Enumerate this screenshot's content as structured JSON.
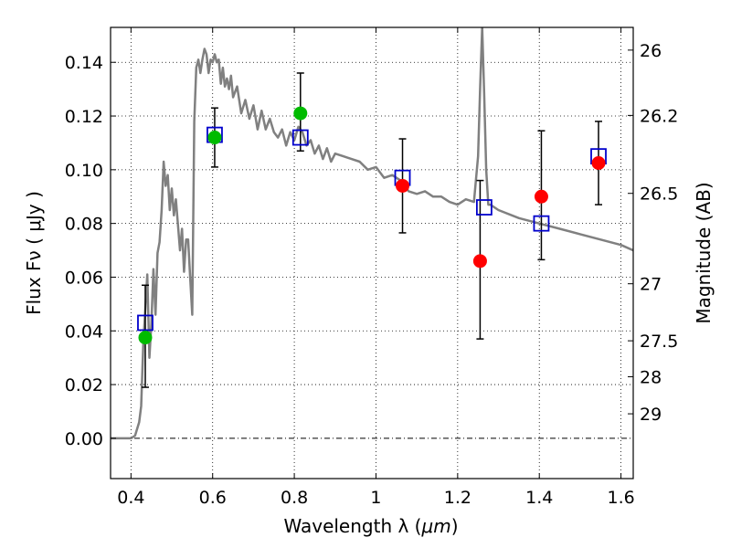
{
  "chart_data": {
    "type": "scatter",
    "title": "",
    "xlabel_prefix": "Wavelength  λ (",
    "xlabel_unit": "μm",
    "xlabel_suffix": ")",
    "ylabel": "Flux  Fν  ( μJy )",
    "ylabel_right": "Magnitude (AB)",
    "xlim": [
      0.35,
      1.63
    ],
    "ylim": [
      -0.015,
      0.153
    ],
    "grid": true,
    "x_ticks": [
      {
        "value": 0.4,
        "label": "0.4"
      },
      {
        "value": 0.6,
        "label": "0.6"
      },
      {
        "value": 0.8,
        "label": "0.8"
      },
      {
        "value": 1.0,
        "label": "1"
      },
      {
        "value": 1.2,
        "label": "1.2"
      },
      {
        "value": 1.4,
        "label": "1.4"
      },
      {
        "value": 1.6,
        "label": "1.6"
      }
    ],
    "y_ticks": [
      {
        "value": 0.0,
        "label": "0.00"
      },
      {
        "value": 0.02,
        "label": "0.02"
      },
      {
        "value": 0.04,
        "label": "0.04"
      },
      {
        "value": 0.06,
        "label": "0.06"
      },
      {
        "value": 0.08,
        "label": "0.08"
      },
      {
        "value": 0.1,
        "label": "0.10"
      },
      {
        "value": 0.12,
        "label": "0.12"
      },
      {
        "value": 0.14,
        "label": "0.14"
      }
    ],
    "right_ticks": [
      {
        "value": 26,
        "label": "26"
      },
      {
        "value": 26.2,
        "label": "26.2"
      },
      {
        "value": 26.5,
        "label": "26.5"
      },
      {
        "value": 27,
        "label": "27"
      },
      {
        "value": 27.5,
        "label": "27.5"
      },
      {
        "value": 28,
        "label": "28"
      },
      {
        "value": 29,
        "label": "29"
      }
    ],
    "series": [
      {
        "kind": "line",
        "color": "#808080",
        "x": [
          0.35,
          0.4,
          0.41,
          0.42,
          0.425,
          0.43,
          0.44,
          0.445,
          0.45,
          0.455,
          0.46,
          0.465,
          0.47,
          0.475,
          0.48,
          0.485,
          0.49,
          0.495,
          0.5,
          0.505,
          0.51,
          0.52,
          0.525,
          0.53,
          0.535,
          0.54,
          0.545,
          0.55,
          0.555,
          0.56,
          0.565,
          0.57,
          0.575,
          0.58,
          0.585,
          0.59,
          0.595,
          0.6,
          0.605,
          0.61,
          0.615,
          0.62,
          0.625,
          0.63,
          0.635,
          0.64,
          0.645,
          0.65,
          0.66,
          0.67,
          0.68,
          0.69,
          0.7,
          0.71,
          0.72,
          0.73,
          0.74,
          0.75,
          0.76,
          0.77,
          0.78,
          0.79,
          0.8,
          0.81,
          0.82,
          0.83,
          0.84,
          0.85,
          0.86,
          0.87,
          0.88,
          0.89,
          0.9,
          0.92,
          0.94,
          0.96,
          0.98,
          1.0,
          1.02,
          1.04,
          1.06,
          1.08,
          1.1,
          1.12,
          1.14,
          1.16,
          1.18,
          1.2,
          1.22,
          1.24,
          1.25,
          1.255,
          1.26,
          1.265,
          1.27,
          1.275,
          1.28,
          1.3,
          1.35,
          1.4,
          1.45,
          1.5,
          1.55,
          1.6,
          1.63
        ],
        "y": [
          0.0,
          0.0,
          0.001,
          0.006,
          0.012,
          0.035,
          0.061,
          0.03,
          0.043,
          0.063,
          0.046,
          0.069,
          0.073,
          0.085,
          0.103,
          0.094,
          0.098,
          0.085,
          0.093,
          0.083,
          0.089,
          0.07,
          0.078,
          0.062,
          0.074,
          0.074,
          0.06,
          0.046,
          0.118,
          0.138,
          0.141,
          0.136,
          0.141,
          0.145,
          0.143,
          0.136,
          0.141,
          0.14,
          0.143,
          0.14,
          0.141,
          0.132,
          0.138,
          0.131,
          0.134,
          0.13,
          0.135,
          0.127,
          0.131,
          0.121,
          0.126,
          0.119,
          0.124,
          0.115,
          0.122,
          0.115,
          0.119,
          0.114,
          0.112,
          0.115,
          0.109,
          0.114,
          0.111,
          0.116,
          0.114,
          0.109,
          0.111,
          0.106,
          0.109,
          0.104,
          0.108,
          0.103,
          0.106,
          0.105,
          0.104,
          0.103,
          0.1,
          0.101,
          0.097,
          0.098,
          0.096,
          0.092,
          0.091,
          0.092,
          0.09,
          0.09,
          0.088,
          0.087,
          0.089,
          0.088,
          0.105,
          0.13,
          0.153,
          0.128,
          0.1,
          0.087,
          0.087,
          0.085,
          0.082,
          0.08,
          0.078,
          0.076,
          0.074,
          0.072,
          0.07
        ]
      },
      {
        "kind": "markers",
        "marker": "open-square",
        "color": "#0000cc",
        "x": [
          0.435,
          0.605,
          0.815,
          1.065,
          1.265,
          1.405,
          1.545
        ],
        "y": [
          0.043,
          0.113,
          0.112,
          0.097,
          0.086,
          0.08,
          0.105
        ]
      },
      {
        "kind": "markers",
        "marker": "filled-circle",
        "color": "#00bb00",
        "x": [
          0.435,
          0.605,
          0.815
        ],
        "y": [
          0.0375,
          0.112,
          0.121
        ],
        "yerr_low": [
          0.0185,
          0.011,
          0.014
        ],
        "yerr_high": [
          0.0195,
          0.011,
          0.015
        ]
      },
      {
        "kind": "markers",
        "marker": "filled-circle",
        "color": "#ff0000",
        "x": [
          1.065,
          1.255,
          1.405,
          1.545
        ],
        "y": [
          0.094,
          0.066,
          0.09,
          0.1025
        ],
        "yerr_low": [
          0.0175,
          0.029,
          0.0235,
          0.0155
        ],
        "yerr_high": [
          0.0175,
          0.03,
          0.0245,
          0.0155
        ]
      }
    ]
  }
}
